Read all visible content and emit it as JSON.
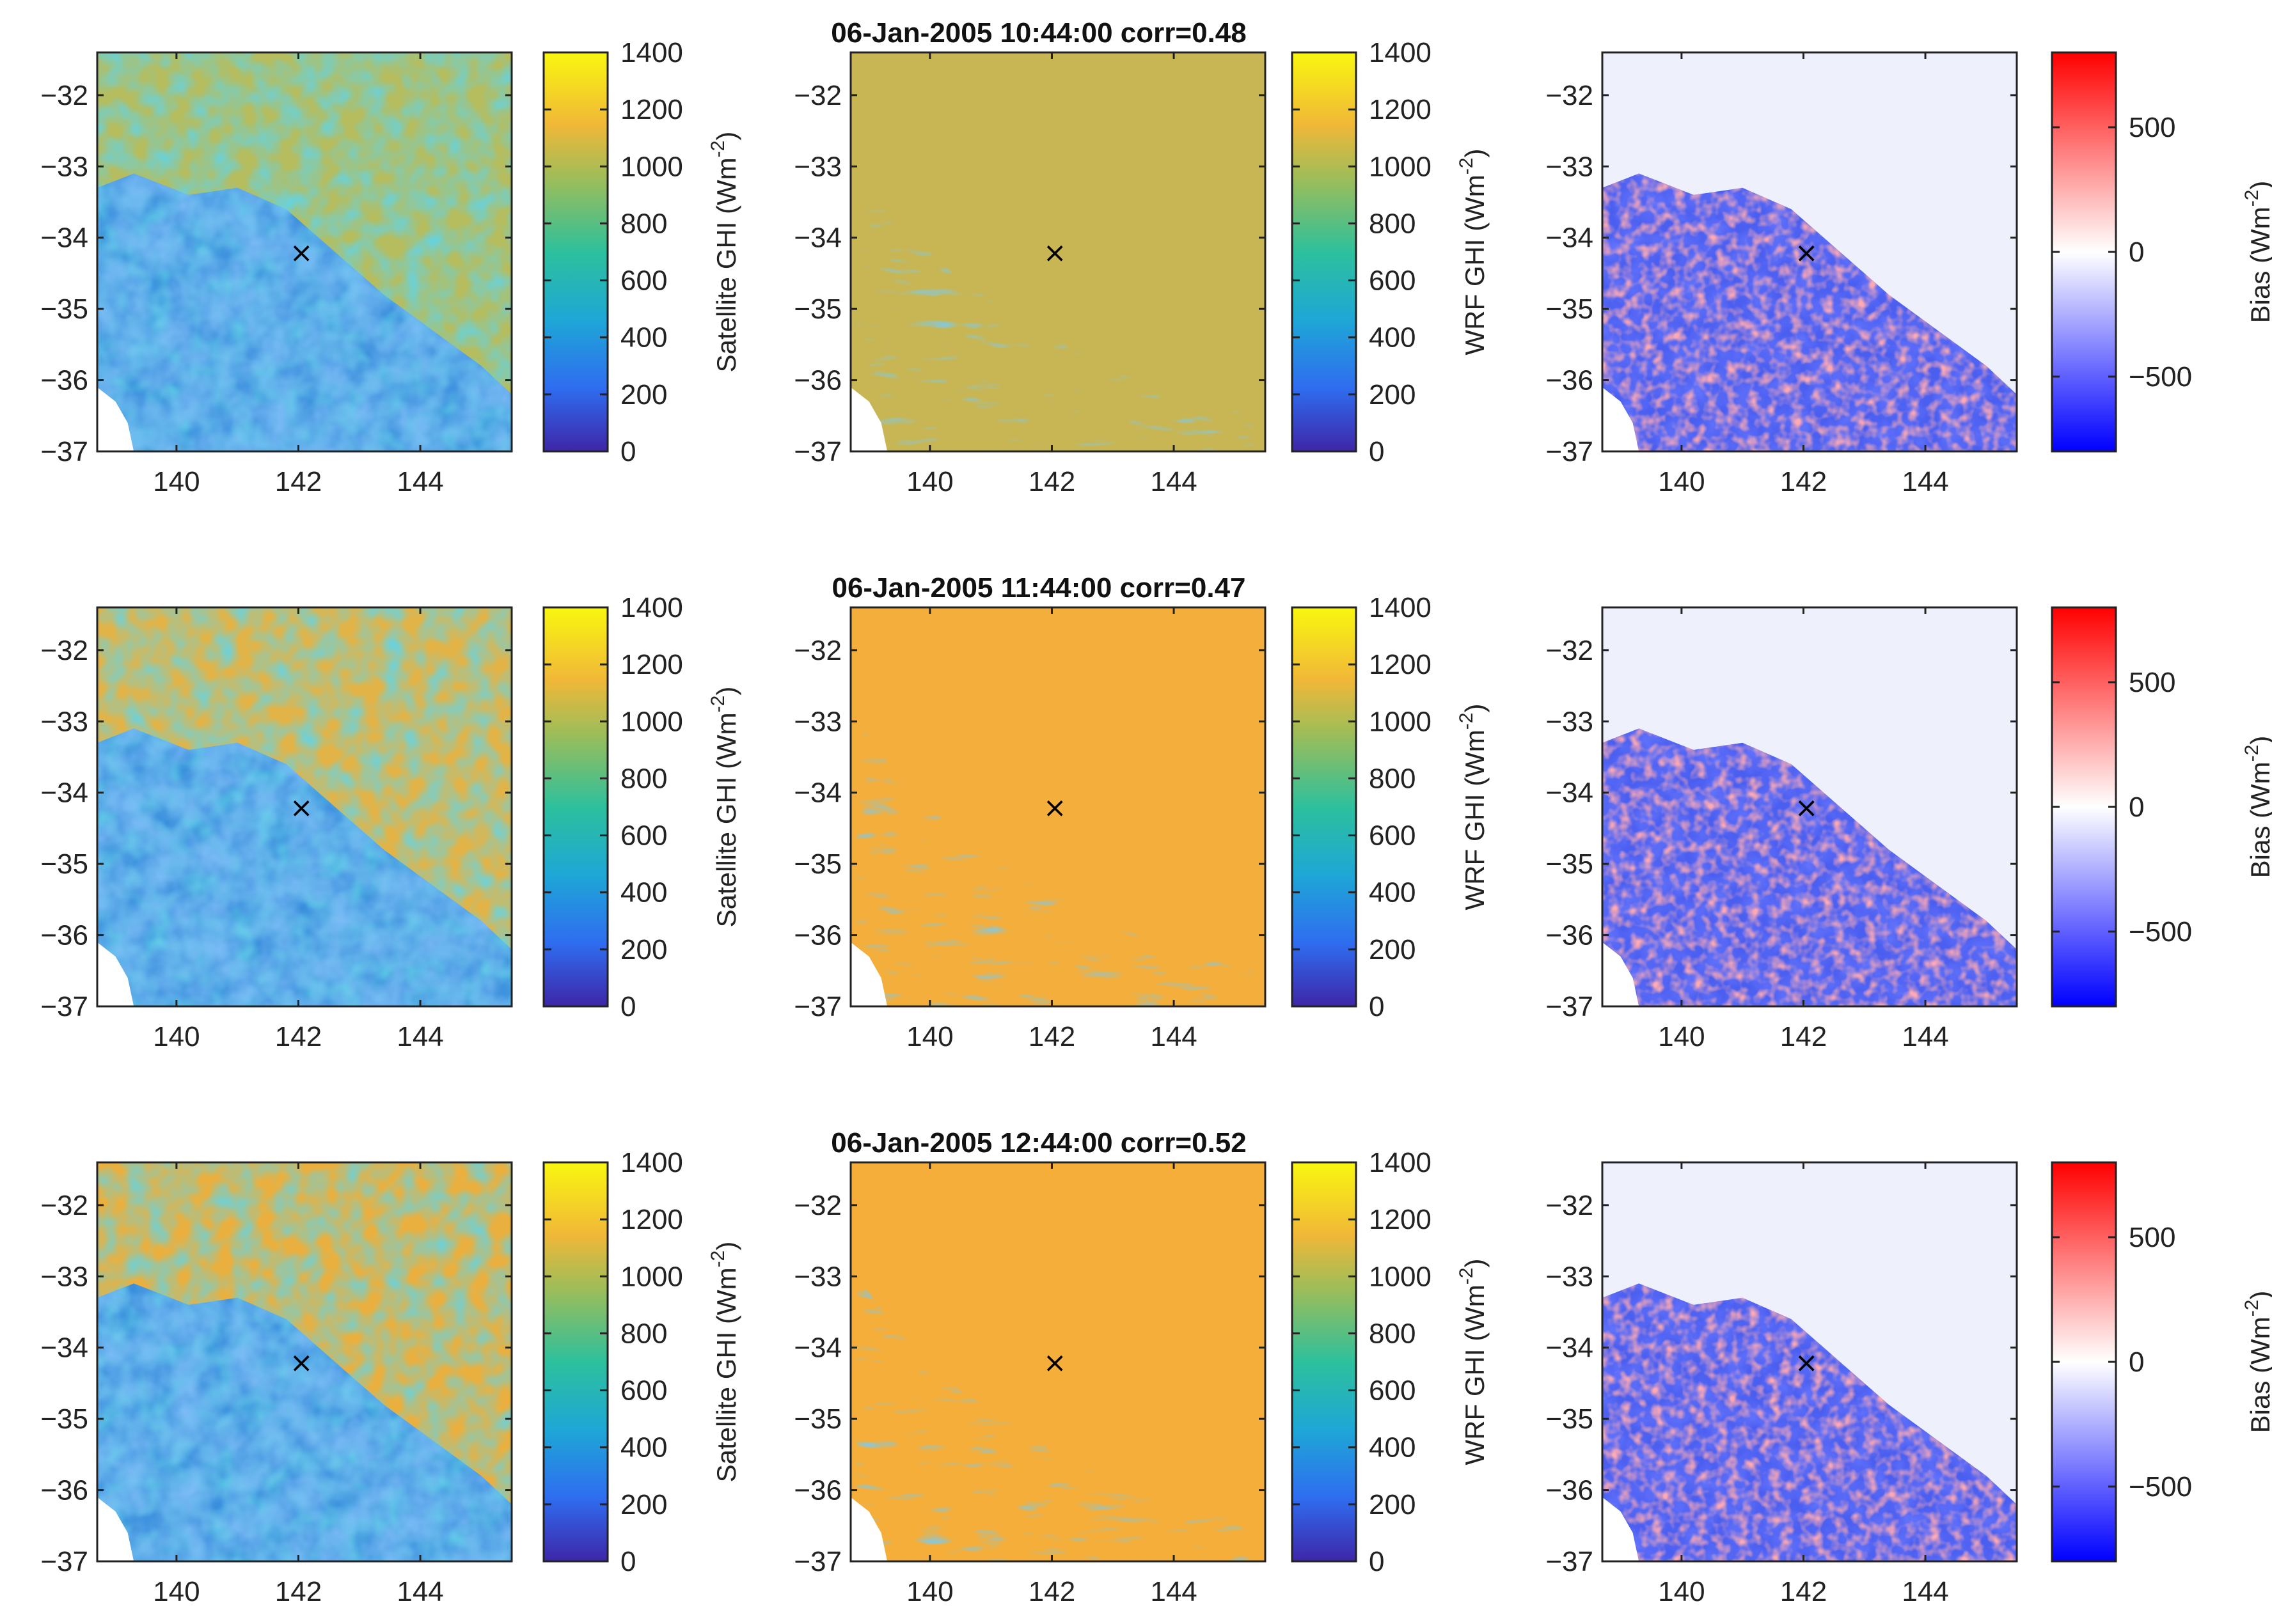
{
  "figure": {
    "rows": [
      {
        "title": "06-Jan-2005 10:44:00    corr=0.48",
        "hour": 10
      },
      {
        "title": "06-Jan-2005 11:44:00    corr=0.47",
        "hour": 11
      },
      {
        "title": "06-Jan-2005 12:44:00    corr=0.52",
        "hour": 12
      }
    ],
    "columns": [
      {
        "kind": "satellite",
        "colorbar_label": "Satellite GHI (Wm^-2)",
        "label_main": "Satellite GHI (Wm",
        "label_sup": "-2",
        "label_end": ")"
      },
      {
        "kind": "wrf",
        "colorbar_label": "WRF GHI (Wm^-2)",
        "label_main": "WRF GHI (Wm",
        "label_sup": "-2",
        "label_end": ")"
      },
      {
        "kind": "bias",
        "colorbar_label": "Bias (Wm^-2)",
        "label_main": "Bias (Wm",
        "label_sup": "-2",
        "label_end": ")"
      }
    ]
  },
  "chart_data": {
    "type": "heatmap",
    "xlim": [
      138.7,
      145.5
    ],
    "ylim": [
      -37,
      -31.4
    ],
    "xticks": [
      140,
      142,
      144
    ],
    "xtick_labels": [
      "140",
      "142",
      "144"
    ],
    "yticks": [
      -32,
      -33,
      -34,
      -35,
      -36,
      -37
    ],
    "ytick_labels": [
      "-32",
      "-33",
      "-34",
      "-35",
      "-36",
      "-37"
    ],
    "marker": {
      "lon": 142.05,
      "lat": -34.22,
      "symbol": "×"
    },
    "ghi_colorbar": {
      "range": [
        0,
        1400
      ],
      "ticks": [
        0,
        200,
        400,
        600,
        800,
        1000,
        1200,
        1400
      ],
      "tick_labels": [
        "0",
        "200",
        "400",
        "600",
        "800",
        "1000",
        "1200",
        "1400"
      ],
      "colors": [
        "#3e26a8",
        "#2f6df0",
        "#1ea7d6",
        "#2dc09c",
        "#9bbd5a",
        "#f1b838",
        "#f9f70f"
      ]
    },
    "bias_colorbar": {
      "range": [
        -800,
        800
      ],
      "ticks": [
        500,
        0,
        -500
      ],
      "tick_labels": [
        "500",
        "0",
        "-500"
      ],
      "colors": [
        "#0000ff",
        "#ffffff",
        "#ff0000"
      ]
    }
  }
}
